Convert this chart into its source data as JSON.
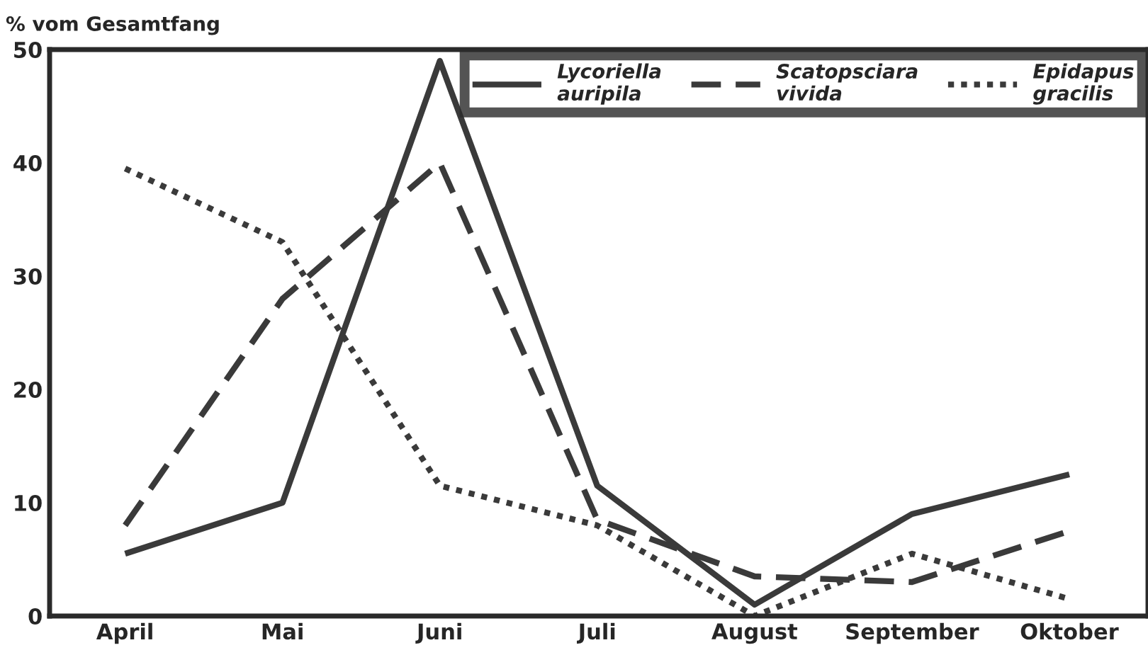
{
  "chart_data": {
    "type": "line",
    "ylabel": "% vom Gesamtfang",
    "categories": [
      "April",
      "Mai",
      "Juni",
      "Juli",
      "August",
      "September",
      "Oktober"
    ],
    "series": [
      {
        "name": "Lycoriella\nauripila",
        "color": "#3a3a3a",
        "line_style": "solid",
        "values": [
          5.5,
          10,
          49,
          11.5,
          1,
          9,
          12.5
        ]
      },
      {
        "name": "Scatopsciara\nvivida",
        "color": "#3a3a3a",
        "line_style": "dashed",
        "values": [
          8,
          28,
          40,
          8.5,
          3.5,
          3,
          7.5
        ]
      },
      {
        "name": "Epidapus\ngracilis",
        "color": "#3a3a3a",
        "line_style": "dotted",
        "values": [
          39.5,
          33,
          11.5,
          8,
          0,
          5.5,
          1.5
        ]
      }
    ],
    "ylim": [
      0,
      50
    ],
    "yticks": [
      0,
      10,
      20,
      30,
      40,
      50
    ],
    "grid": false,
    "legend": "top right",
    "marker": "none"
  }
}
